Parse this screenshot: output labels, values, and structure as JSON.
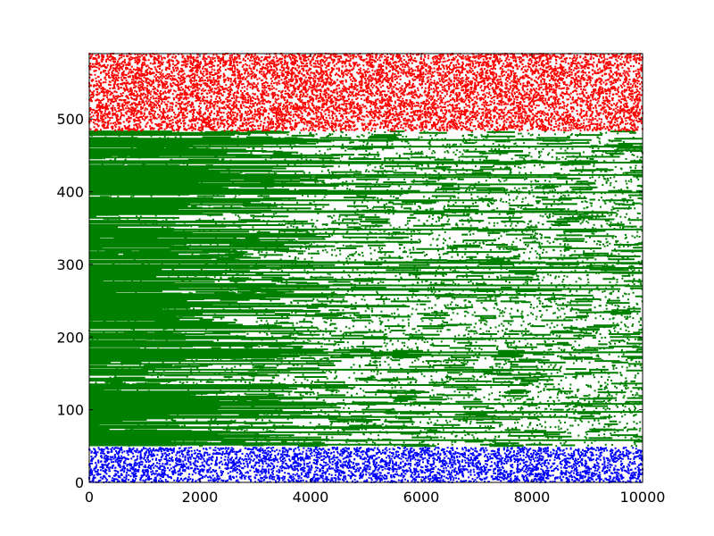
{
  "chart_data": {
    "type": "scatter",
    "title": "",
    "xlabel": "",
    "ylabel": "",
    "xlim": [
      0,
      10000
    ],
    "ylim": [
      0,
      590
    ],
    "xticks": [
      0,
      2000,
      4000,
      6000,
      8000,
      10000
    ],
    "yticks": [
      0,
      100,
      200,
      300,
      400,
      500
    ],
    "xtick_labels": [
      "0",
      "2000",
      "4000",
      "6000",
      "8000",
      "10000"
    ],
    "ytick_labels": [
      "0",
      "100",
      "200",
      "300",
      "400",
      "500"
    ],
    "grid": false,
    "series": [
      {
        "color": "#0000ff",
        "y_range": [
          0,
          48
        ],
        "x_range": [
          0,
          10000
        ],
        "pattern": "uniform random scatter",
        "approx_points": 4000
      },
      {
        "color": "#008000",
        "y_range": [
          50,
          483
        ],
        "x_range": [
          0,
          10000
        ],
        "pattern": "dense horizontal streaks, density decreasing with x",
        "approx_points": 60000
      },
      {
        "color": "#ff0000",
        "y_range": [
          484,
          590
        ],
        "x_range": [
          0,
          10000
        ],
        "pattern": "uniform random scatter",
        "approx_points": 9000
      }
    ]
  }
}
